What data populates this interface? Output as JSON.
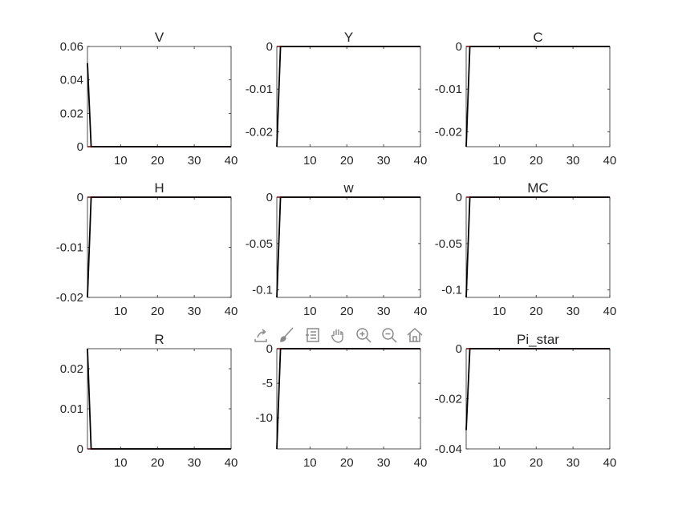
{
  "figure_toolbar": {
    "icons": [
      "export-icon",
      "brush-icon",
      "legend-icon",
      "pan-icon",
      "zoom-in-icon",
      "zoom-out-icon",
      "home-icon"
    ]
  },
  "colors": {
    "response": "#000000",
    "steady_state": "#8b0000",
    "axes": "#262626"
  },
  "chart_data": [
    {
      "type": "line",
      "title": "V",
      "xlim": [
        1,
        40
      ],
      "ylim": [
        0,
        0.06
      ],
      "xticks": [
        10,
        20,
        30,
        40
      ],
      "yticks": [
        0,
        0.02,
        0.04,
        0.06
      ],
      "ytick_labels": [
        "0",
        "0.02",
        "0.04",
        "0.06"
      ],
      "x": [
        1,
        2,
        40
      ],
      "series": [
        {
          "values": [
            0.05,
            0,
            0
          ]
        }
      ],
      "steady_state": 0
    },
    {
      "type": "line",
      "title": "Y",
      "xlim": [
        1,
        40
      ],
      "ylim": [
        -0.0235,
        0
      ],
      "xticks": [
        10,
        20,
        30,
        40
      ],
      "yticks": [
        -0.02,
        -0.01,
        0
      ],
      "ytick_labels": [
        "-0.02",
        "-0.01",
        "0"
      ],
      "x": [
        1,
        2,
        40
      ],
      "series": [
        {
          "values": [
            -0.0235,
            0,
            0
          ]
        }
      ],
      "steady_state": 0
    },
    {
      "type": "line",
      "title": "C",
      "xlim": [
        1,
        40
      ],
      "ylim": [
        -0.0235,
        0
      ],
      "xticks": [
        10,
        20,
        30,
        40
      ],
      "yticks": [
        -0.02,
        -0.01,
        0
      ],
      "ytick_labels": [
        "-0.02",
        "-0.01",
        "0"
      ],
      "x": [
        1,
        2,
        40
      ],
      "series": [
        {
          "values": [
            -0.0235,
            0,
            0
          ]
        }
      ],
      "steady_state": 0
    },
    {
      "type": "line",
      "title": "H",
      "xlim": [
        1,
        40
      ],
      "ylim": [
        -0.02,
        0
      ],
      "xticks": [
        10,
        20,
        30,
        40
      ],
      "yticks": [
        -0.02,
        -0.01,
        0
      ],
      "ytick_labels": [
        "-0.02",
        "-0.01",
        "0"
      ],
      "x": [
        1,
        2,
        40
      ],
      "series": [
        {
          "values": [
            -0.02,
            0,
            0
          ]
        }
      ],
      "steady_state": 0
    },
    {
      "type": "line",
      "title": "w",
      "xlim": [
        1,
        40
      ],
      "ylim": [
        -0.108,
        0
      ],
      "xticks": [
        10,
        20,
        30,
        40
      ],
      "yticks": [
        -0.1,
        -0.05,
        0
      ],
      "ytick_labels": [
        "-0.1",
        "-0.05",
        "0"
      ],
      "x": [
        1,
        2,
        40
      ],
      "series": [
        {
          "values": [
            -0.108,
            0,
            0
          ]
        }
      ],
      "steady_state": 0
    },
    {
      "type": "line",
      "title": "MC",
      "xlim": [
        1,
        40
      ],
      "ylim": [
        -0.108,
        0
      ],
      "xticks": [
        10,
        20,
        30,
        40
      ],
      "yticks": [
        -0.1,
        -0.05,
        0
      ],
      "ytick_labels": [
        "-0.1",
        "-0.05",
        "0"
      ],
      "x": [
        1,
        2,
        40
      ],
      "series": [
        {
          "values": [
            -0.108,
            0,
            0
          ]
        }
      ],
      "steady_state": 0
    },
    {
      "type": "line",
      "title": "R",
      "xlim": [
        1,
        40
      ],
      "ylim": [
        0,
        0.025
      ],
      "xticks": [
        10,
        20,
        30,
        40
      ],
      "yticks": [
        0,
        0.01,
        0.02
      ],
      "ytick_labels": [
        "0",
        "0.01",
        "0.02"
      ],
      "x": [
        1,
        2,
        40
      ],
      "series": [
        {
          "values": [
            0.025,
            0,
            0
          ]
        }
      ],
      "steady_state": 0
    },
    {
      "type": "line",
      "title": "",
      "xlim": [
        1,
        40
      ],
      "ylim": [
        -14.5,
        0
      ],
      "xticks": [
        10,
        20,
        30,
        40
      ],
      "yticks": [
        -10,
        -5,
        0
      ],
      "ytick_labels": [
        "-10",
        "-5",
        "0"
      ],
      "x": [
        1,
        2,
        40
      ],
      "series": [
        {
          "values": [
            -14.5,
            0,
            0
          ]
        }
      ],
      "steady_state": 0
    },
    {
      "type": "line",
      "title": "Pi_star",
      "xlim": [
        1,
        40
      ],
      "ylim": [
        -0.04,
        0
      ],
      "xticks": [
        10,
        20,
        30,
        40
      ],
      "yticks": [
        -0.04,
        -0.02,
        0
      ],
      "ytick_labels": [
        "-0.04",
        "-0.02",
        "0"
      ],
      "x": [
        1,
        2,
        40
      ],
      "series": [
        {
          "values": [
            -0.0325,
            0,
            0
          ]
        }
      ],
      "steady_state": 0
    }
  ]
}
